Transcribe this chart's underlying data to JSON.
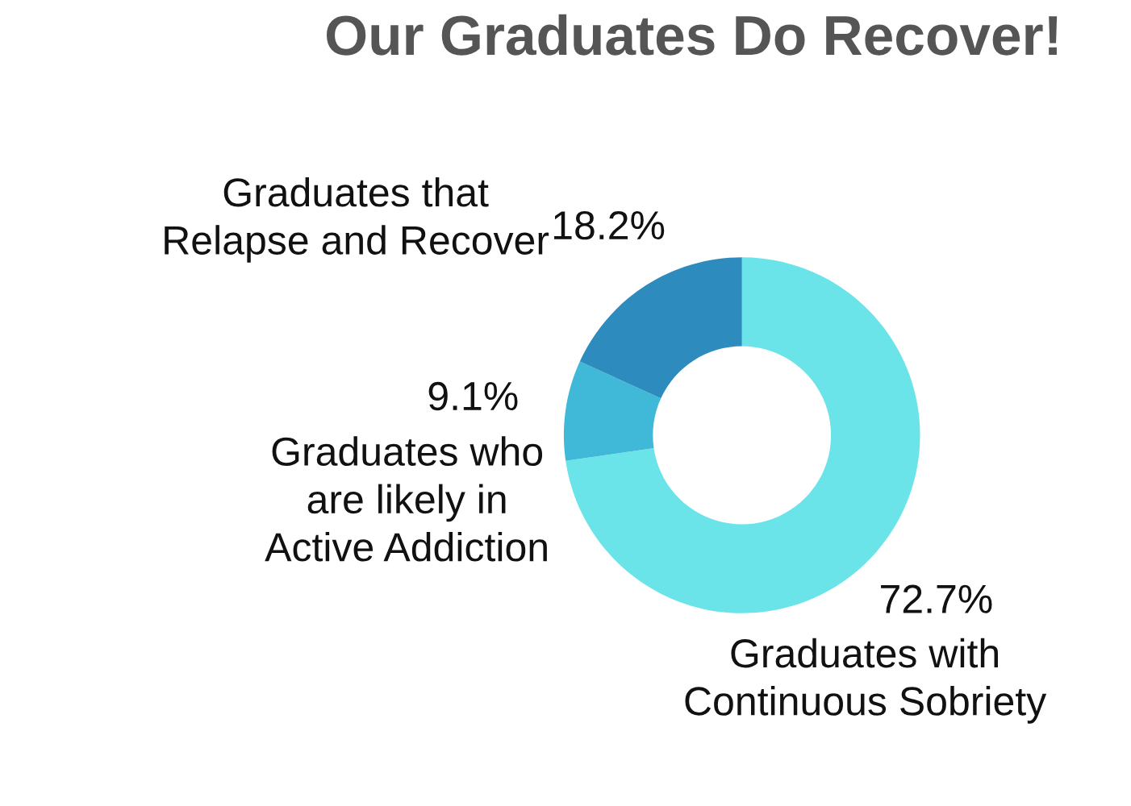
{
  "chart_data": {
    "type": "donut",
    "title": "Our Graduates Do Recover!",
    "categories": [
      "Graduates with\nContinuous Sobriety",
      "Graduates who\nare likely in\nActive Addiction",
      "Graduates that\nRelapse and Recover"
    ],
    "values": [
      72.7,
      9.1,
      18.2
    ],
    "colors": [
      "#6ae4e8",
      "#40b8d8",
      "#2e8bbd"
    ],
    "value_labels": [
      "72.7%",
      "9.1%",
      "18.2%"
    ],
    "legend": false
  }
}
